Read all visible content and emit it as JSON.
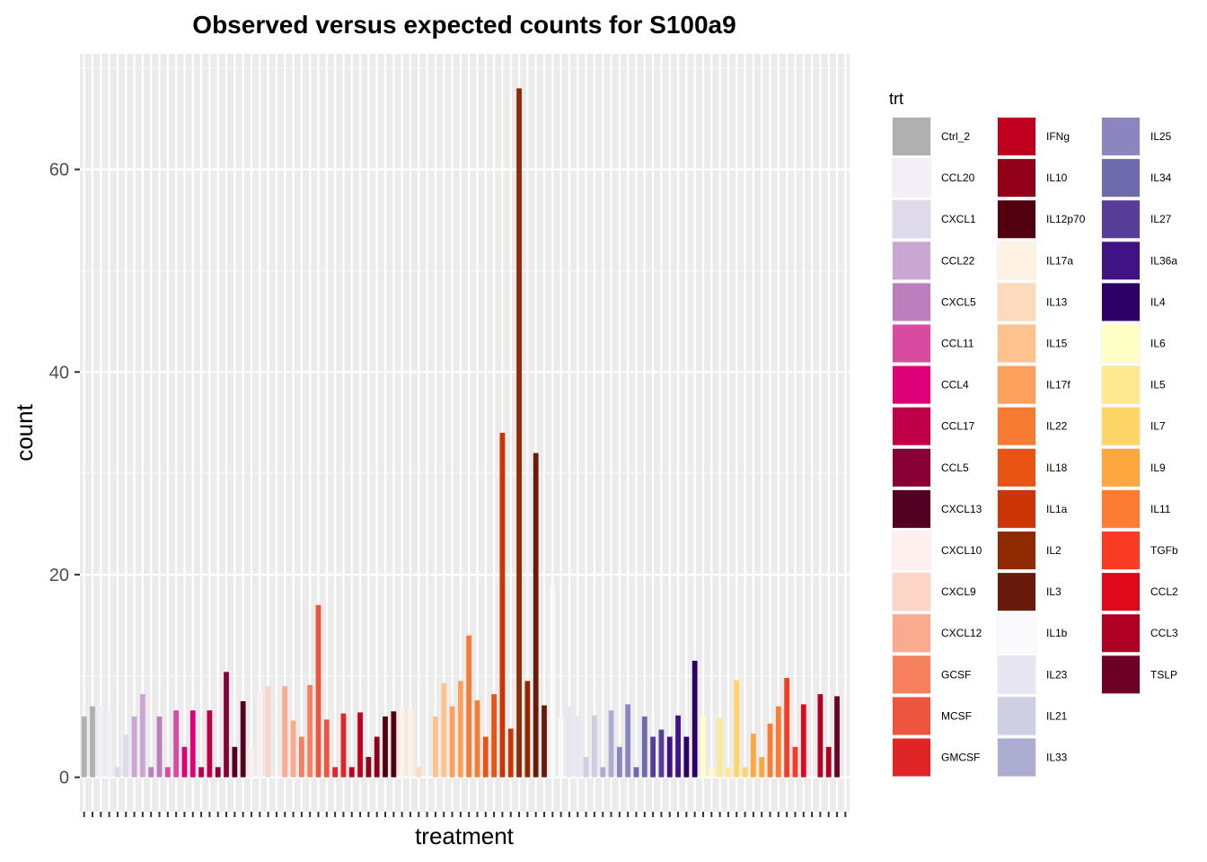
{
  "chart_data": {
    "type": "bar",
    "title": "Observed versus expected counts for S100a9",
    "xlabel": "treatment",
    "ylabel": "count",
    "ylim": [
      -3.4,
      71.4
    ],
    "yticks": [
      0,
      20,
      40,
      60
    ],
    "grid": true,
    "legend": {
      "title": "trt",
      "position": "right",
      "columns": 3
    },
    "series": [
      {
        "name": "Ctrl_2",
        "color": "#B0B0B0",
        "values": [
          6,
          7
        ]
      },
      {
        "name": "CCL20",
        "color": "#F2EFF6",
        "values": [
          7,
          6.6
        ]
      },
      {
        "name": "CXCL1",
        "color": "#DEDAEC",
        "values": [
          1,
          4.2
        ]
      },
      {
        "name": "CCL22",
        "color": "#CAA6D2",
        "values": [
          6,
          8.2
        ]
      },
      {
        "name": "CXCL5",
        "color": "#BD7EBE",
        "values": [
          1,
          6
        ]
      },
      {
        "name": "CCL11",
        "color": "#D74BA0",
        "values": [
          1,
          6.6
        ]
      },
      {
        "name": "CCL4",
        "color": "#DD0076",
        "values": [
          3,
          6.6
        ]
      },
      {
        "name": "CCL17",
        "color": "#BF0049",
        "values": [
          1,
          6.6
        ]
      },
      {
        "name": "CCL5",
        "color": "#880036",
        "values": [
          1,
          10.4
        ]
      },
      {
        "name": "CXCL13",
        "color": "#530021",
        "values": [
          3,
          7.5
        ]
      },
      {
        "name": "CXCL10",
        "color": "#FEF0EC",
        "values": [
          3,
          8.4
        ]
      },
      {
        "name": "CXCL9",
        "color": "#FCD5C6",
        "values": [
          9,
          0
        ]
      },
      {
        "name": "CXCL12",
        "color": "#F9AA8F",
        "values": [
          9,
          5.6
        ]
      },
      {
        "name": "GCSF",
        "color": "#F7805F",
        "values": [
          4,
          9.1
        ]
      },
      {
        "name": "MCSF",
        "color": "#EE553F",
        "values": [
          17,
          5.7
        ]
      },
      {
        "name": "GMCSF",
        "color": "#E02526",
        "values": [
          1,
          6.3
        ]
      },
      {
        "name": "IFNg",
        "color": "#C10020",
        "values": [
          1,
          6.4
        ]
      },
      {
        "name": "IL10",
        "color": "#920019",
        "values": [
          2,
          4
        ]
      },
      {
        "name": "IL12p70",
        "color": "#520010",
        "values": [
          6,
          6.5
        ]
      },
      {
        "name": "IL17a",
        "color": "#FEF2E5",
        "values": [
          7,
          6.7
        ]
      },
      {
        "name": "IL13",
        "color": "#FCDABB",
        "values": [
          1,
          0
        ]
      },
      {
        "name": "IL15",
        "color": "#FDC28E",
        "values": [
          6,
          9.3
        ]
      },
      {
        "name": "IL17f",
        "color": "#FBA05D",
        "values": [
          7,
          9.5
        ]
      },
      {
        "name": "IL22",
        "color": "#F67C33",
        "values": [
          14,
          7.6
        ]
      },
      {
        "name": "IL18",
        "color": "#E95415",
        "values": [
          4,
          8.2
        ]
      },
      {
        "name": "IL1a",
        "color": "#CC3505",
        "values": [
          34,
          4.8
        ]
      },
      {
        "name": "IL2",
        "color": "#8F2A03",
        "values": [
          68,
          9.5
        ]
      },
      {
        "name": "IL3",
        "color": "#681A0B",
        "values": [
          32,
          7.1
        ]
      },
      {
        "name": "IL1b",
        "color": "#FAFAFC",
        "values": [
          19,
          5.9
        ]
      },
      {
        "name": "IL23",
        "color": "#E8E7F1",
        "values": [
          7,
          6.1
        ]
      },
      {
        "name": "IL21",
        "color": "#CFCFE4",
        "values": [
          2,
          6.1
        ]
      },
      {
        "name": "IL33",
        "color": "#ADADD3",
        "values": [
          1,
          6.6
        ]
      },
      {
        "name": "IL25",
        "color": "#8C86C0",
        "values": [
          3,
          7.2
        ]
      },
      {
        "name": "IL34",
        "color": "#6F6AAD",
        "values": [
          1,
          6
        ]
      },
      {
        "name": "IL27",
        "color": "#563E98",
        "values": [
          4,
          4.7
        ]
      },
      {
        "name": "IL36a",
        "color": "#3F1383",
        "values": [
          4,
          6.1
        ]
      },
      {
        "name": "IL4",
        "color": "#2D0067",
        "values": [
          4,
          11.5
        ]
      },
      {
        "name": "IL6",
        "color": "#FEFFC4",
        "values": [
          6,
          1
        ]
      },
      {
        "name": "IL5",
        "color": "#FEE990",
        "values": [
          5.8,
          1
        ]
      },
      {
        "name": "IL7",
        "color": "#FED567",
        "values": [
          9.6,
          1
        ]
      },
      {
        "name": "IL9",
        "color": "#FDA73E",
        "values": [
          4.3,
          2
        ]
      },
      {
        "name": "IL11",
        "color": "#FC7C33",
        "values": [
          5.3,
          7
        ]
      },
      {
        "name": "TGFb",
        "color": "#F93B24",
        "values": [
          9.8,
          3
        ]
      },
      {
        "name": "CCL2",
        "color": "#DE0A1C",
        "values": [
          7.2,
          0
        ]
      },
      {
        "name": "CCL3",
        "color": "#AF0024",
        "values": [
          8.2,
          3
        ]
      },
      {
        "name": "TSLP",
        "color": "#6E0025",
        "values": [
          8,
          0
        ]
      }
    ]
  }
}
